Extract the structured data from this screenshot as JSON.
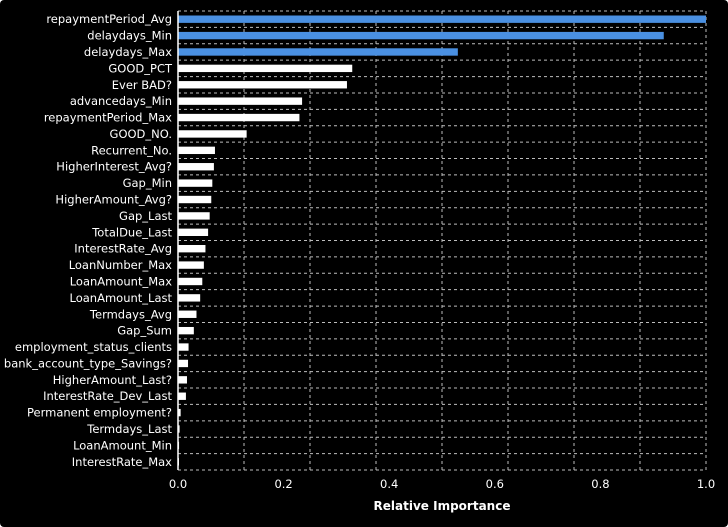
{
  "chart_data": {
    "type": "bar",
    "orientation": "horizontal",
    "categories": [
      "repaymentPeriod_Avg",
      "delaydays_Min",
      "delaydays_Max",
      "GOOD_PCT",
      "Ever BAD?",
      "advancedays_Min",
      "repaymentPeriod_Max",
      "GOOD_NO.",
      "Recurrent_No.",
      "HigherInterest_Avg?",
      "Gap_Min",
      "HigherAmount_Avg?",
      "Gap_Last",
      "TotalDue_Last",
      "InterestRate_Avg",
      "LoanNumber_Max",
      "LoanAmount_Max",
      "LoanAmount_Last",
      "Termdays_Avg",
      "Gap_Sum",
      "employment_status_clients",
      "bank_account_type_Savings?",
      "HigherAmount_Last?",
      "InterestRate_Dev_Last",
      "Permanent employment?",
      "Termdays_Last",
      "LoanAmount_Min",
      "InterestRate_Max"
    ],
    "values": [
      1.0,
      0.92,
      0.53,
      0.33,
      0.32,
      0.235,
      0.23,
      0.13,
      0.07,
      0.068,
      0.065,
      0.063,
      0.06,
      0.057,
      0.052,
      0.049,
      0.046,
      0.042,
      0.035,
      0.03,
      0.02,
      0.019,
      0.017,
      0.015,
      0.005,
      0.003,
      0.002,
      0.001
    ],
    "xlabel": "Relative Importance",
    "ylabel": "",
    "xlim": [
      0.0,
      1.0
    ],
    "xticks": [
      "0.0",
      "0.2",
      "0.4",
      "0.6",
      "0.8",
      "1.0"
    ],
    "grid": true,
    "colors": {
      "background": "#000000",
      "bar_primary": "#4a90e2",
      "bar_secondary": "#ffffff",
      "text": "#ffffff",
      "grid": "#bdbdbd"
    }
  }
}
